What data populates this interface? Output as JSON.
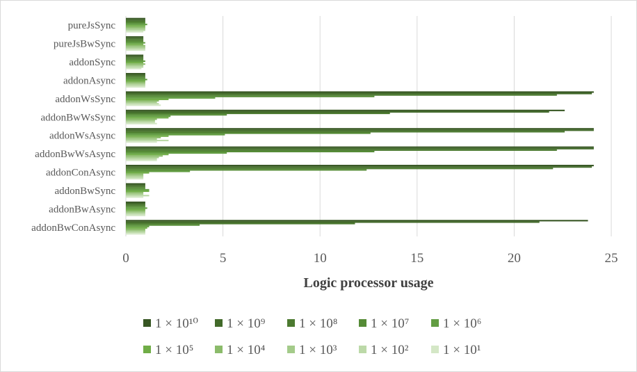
{
  "chart_data": {
    "type": "bar",
    "orientation": "horizontal",
    "title": "",
    "xlabel": "Logic processor usage",
    "ylabel": "",
    "xlim": [
      0,
      25
    ],
    "xticks": [
      "0",
      "5",
      "10",
      "15",
      "20",
      "25"
    ],
    "grid": "vertical",
    "legend_position": "bottom",
    "categories": [
      "pureJsSync",
      "pureJsBwSync",
      "addonSync",
      "addonAsync",
      "addonWsSync",
      "addonBwWsSync",
      "addonWsAsync",
      "addonBwWsAsync",
      "addonConAsync",
      "addonBwSync",
      "addonBwAsync",
      "addonBwConAsync"
    ],
    "series": [
      {
        "name": "1 × 10¹⁰",
        "color": "#375623",
        "values": [
          1.0,
          0.9,
          0.9,
          1.0,
          24.1,
          22.6,
          24.1,
          24.1,
          24.1,
          1.0,
          1.0,
          23.8
        ]
      },
      {
        "name": "1 × 10⁹",
        "color": "#426a2a",
        "values": [
          1.0,
          0.9,
          0.9,
          1.0,
          24.0,
          21.8,
          24.1,
          24.1,
          24.0,
          1.0,
          1.0,
          21.3
        ]
      },
      {
        "name": "1 × 10⁸",
        "color": "#4c7a30",
        "values": [
          1.0,
          0.9,
          0.9,
          1.0,
          22.2,
          13.6,
          22.6,
          22.2,
          22.0,
          1.0,
          1.0,
          11.8
        ]
      },
      {
        "name": "1 × 10⁷",
        "color": "#558b36",
        "values": [
          1.0,
          0.9,
          0.9,
          1.0,
          12.8,
          5.2,
          12.6,
          12.8,
          12.4,
          1.0,
          1.0,
          3.8
        ]
      },
      {
        "name": "1 × 10⁶",
        "color": "#629d42",
        "values": [
          1.1,
          1.0,
          1.0,
          1.1,
          4.6,
          2.3,
          5.1,
          5.2,
          3.3,
          1.2,
          1.1,
          1.2
        ]
      },
      {
        "name": "1 × 10⁵",
        "color": "#70ad47",
        "values": [
          1.0,
          0.9,
          0.9,
          1.0,
          2.2,
          2.2,
          2.2,
          2.2,
          1.2,
          1.2,
          1.0,
          1.1
        ]
      },
      {
        "name": "1 × 10⁴",
        "color": "#8bbb6a",
        "values": [
          1.0,
          1.0,
          1.0,
          1.0,
          1.7,
          1.6,
          1.8,
          1.9,
          0.9,
          0.9,
          1.0,
          1.0
        ]
      },
      {
        "name": "1 × 10³",
        "color": "#a4cb8a",
        "values": [
          1.0,
          1.0,
          0.9,
          1.0,
          1.6,
          1.5,
          1.6,
          1.7,
          0.9,
          0.9,
          1.0,
          1.0
        ]
      },
      {
        "name": "1 × 10²",
        "color": "#bcd9a8",
        "values": [
          1.0,
          1.0,
          0.9,
          1.0,
          1.7,
          1.5,
          2.2,
          1.6,
          0.9,
          1.2,
          1.0,
          1.0
        ]
      },
      {
        "name": "1 × 10¹",
        "color": "#d4e7c6",
        "values": [
          0.9,
          1.0,
          0.8,
          1.0,
          1.8,
          1.6,
          1.6,
          1.6,
          0.9,
          0.9,
          1.0,
          1.0
        ]
      }
    ]
  }
}
